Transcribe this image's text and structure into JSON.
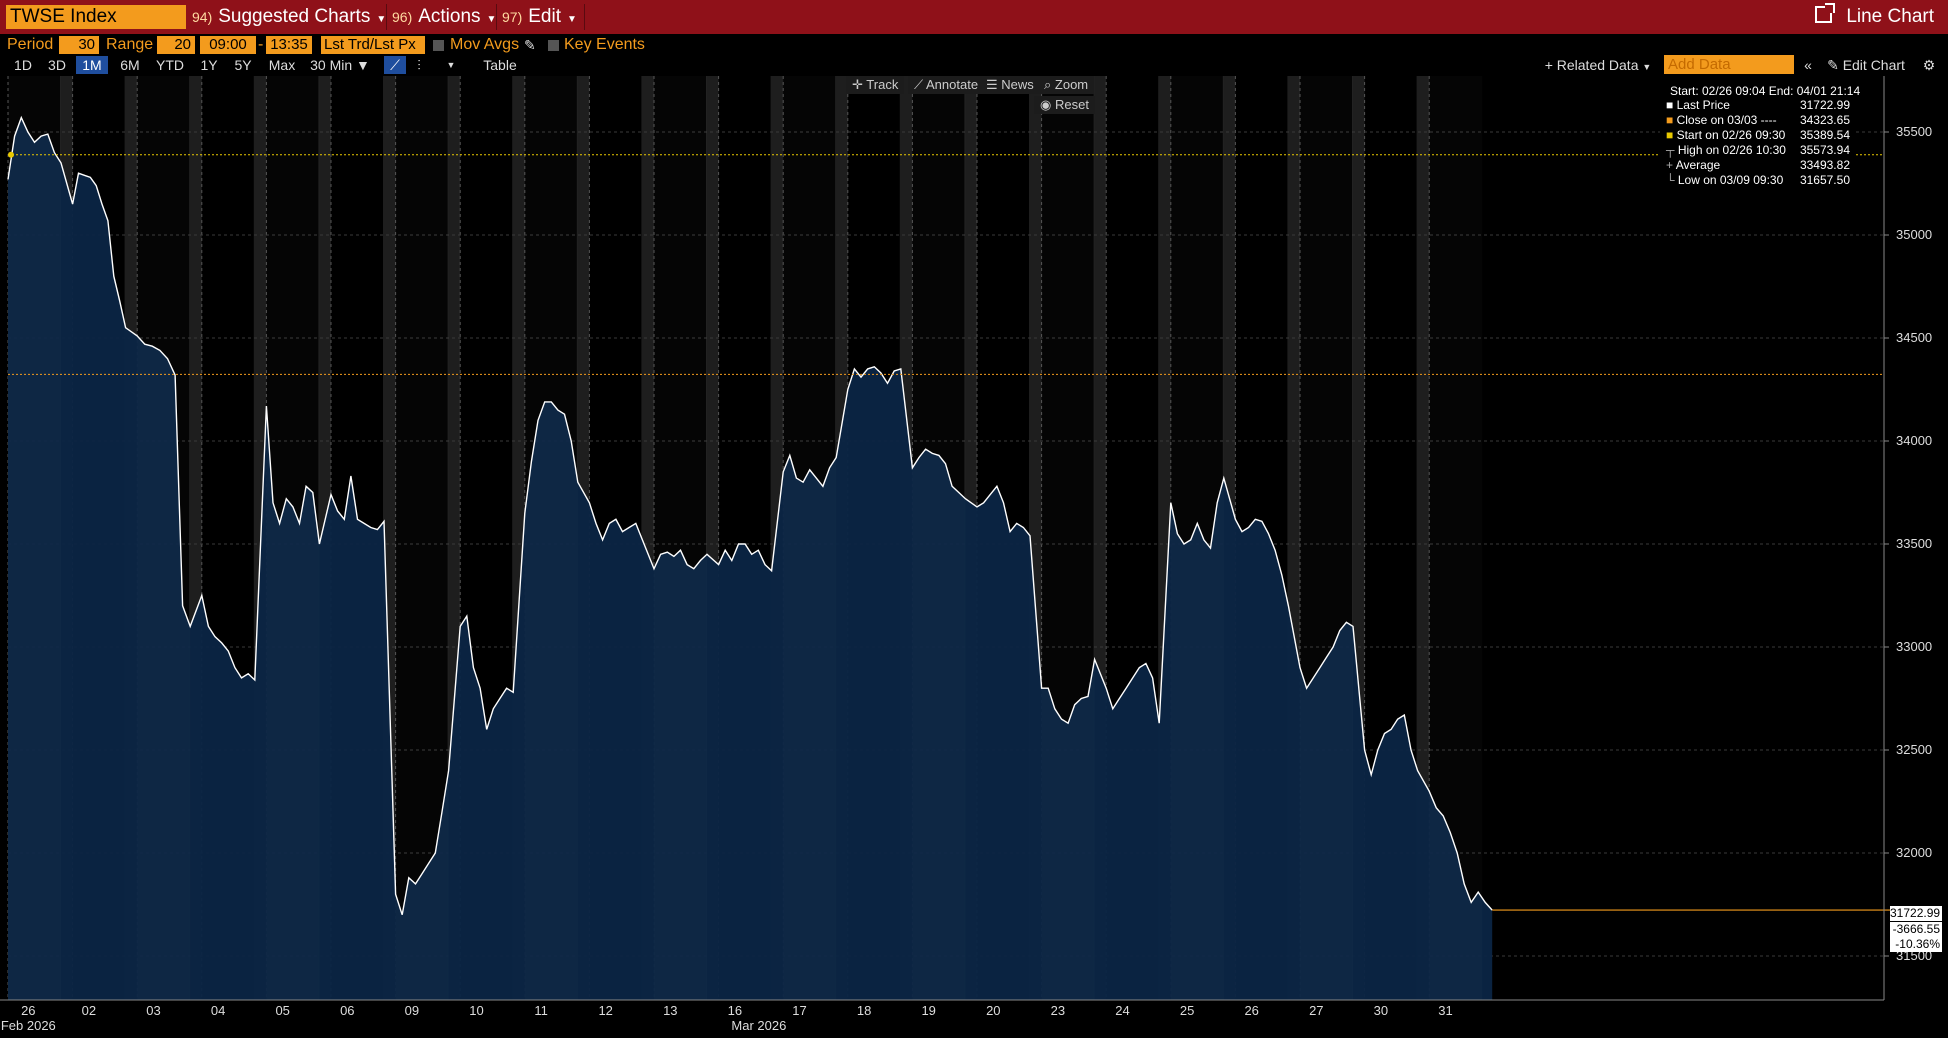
{
  "toolbar": {
    "ticker": "TWSE Index",
    "menus": [
      {
        "num": "94)",
        "label": "Suggested Charts"
      },
      {
        "num": "96)",
        "label": "Actions"
      },
      {
        "num": "97)",
        "label": "Edit"
      }
    ],
    "view_label": "Line Chart"
  },
  "settings": {
    "period_label": "Period",
    "period_value": "30",
    "range_label": "Range",
    "range_value": "20",
    "start_time": "09:00",
    "dash": "-",
    "end_time": "13:35",
    "price_field": "Lst Trd/Lst Px",
    "mov_avgs": "Mov Avgs",
    "key_events": "Key Events"
  },
  "range_tabs": [
    "1D",
    "3D",
    "1M",
    "6M",
    "YTD",
    "1Y",
    "5Y",
    "Max"
  ],
  "active_tab": "1M",
  "interval": "30 Min",
  "table_label": "Table",
  "related_data": "Related Data",
  "add_data_placeholder": "Add Data",
  "edit_chart": "Edit Chart",
  "chart_tools": {
    "track": "Track",
    "annotate": "Annotate",
    "news": "News",
    "zoom": "Zoom",
    "reset": "Reset"
  },
  "legend": {
    "range": "Start: 02/26 09:04 End: 04/01 21:14",
    "rows": [
      {
        "label": "Last Price",
        "value": "31722.99",
        "color": "#ffffff"
      },
      {
        "label": "Close on 03/03 ----",
        "value": "34323.65",
        "color": "#f39b1d"
      },
      {
        "label": "Start on 02/26 09:30",
        "value": "35389.54",
        "color": "#e8c800"
      },
      {
        "label": "High on 02/26 10:30",
        "value": "35573.94",
        "color": "#aaaaaa"
      },
      {
        "label": "Average",
        "value": "33493.82",
        "color": "#aaaaaa"
      },
      {
        "label": "Low on 03/09 09:30",
        "value": "31657.50",
        "color": "#aaaaaa"
      }
    ]
  },
  "right_labels": {
    "last": "31722.99",
    "change": "-3666.55",
    "pct": "-10.36%"
  },
  "colors": {
    "accent": "#f39b1d",
    "topbar": "#8f1119",
    "area": "#0b2545",
    "line": "#ffffff"
  },
  "chart_data": {
    "type": "area",
    "title": "",
    "xlabel": "",
    "ylabel": "",
    "y_ticks": [
      31500,
      32000,
      32500,
      33000,
      33500,
      34000,
      34500,
      35000,
      35500
    ],
    "ylim": [
      31400,
      35800
    ],
    "x_ticks": [
      "26",
      "02",
      "03",
      "04",
      "05",
      "06",
      "09",
      "10",
      "11",
      "12",
      "13",
      "16",
      "17",
      "18",
      "19",
      "20",
      "23",
      "24",
      "25",
      "26",
      "27",
      "30",
      "31"
    ],
    "month_labels": [
      {
        "day_index": 0,
        "text": "Feb 2026"
      },
      {
        "day_index": 11,
        "text": "Mar 2026"
      }
    ],
    "reference_lines": [
      {
        "name": "Start on 02/26 09:30",
        "value": 35389.54,
        "color": "#e8c800"
      },
      {
        "name": "Close on 03/03",
        "value": 34323.65,
        "color": "#f39b1d"
      },
      {
        "name": "Last Price",
        "value": 31722.99,
        "color": "#f39b1d"
      }
    ],
    "series": [
      {
        "name": "Last Price",
        "days": [
          [
            35270,
            35480,
            35570,
            35500,
            35450,
            35480,
            35490,
            35400,
            35350
          ],
          [
            35150,
            35300,
            35290,
            35280,
            35240,
            35150,
            35070,
            34800,
            34680,
            34550
          ],
          [
            34510,
            34470,
            34460,
            34440,
            34400,
            34320,
            33200,
            33100
          ],
          [
            33250,
            33100,
            33050,
            33020,
            32980,
            32900,
            32850,
            32870,
            32840
          ],
          [
            34170,
            33700,
            33600,
            33720,
            33680,
            33600,
            33780,
            33750,
            33500
          ],
          [
            33740,
            33660,
            33620,
            33830,
            33620,
            33600,
            33580,
            33570,
            33610
          ],
          [
            31800,
            31700,
            31880,
            31850,
            31900,
            31950,
            32000,
            32200,
            32400
          ],
          [
            33100,
            33150,
            32900,
            32800,
            32600,
            32700,
            32750,
            32800,
            32780
          ],
          [
            33650,
            33900,
            34100,
            34190,
            34190,
            34150,
            34130,
            34000,
            33800
          ],
          [
            33700,
            33600,
            33520,
            33600,
            33620,
            33560,
            33580,
            33600,
            33520
          ],
          [
            33380,
            33450,
            33460,
            33440,
            33470,
            33400,
            33380,
            33420,
            33450
          ],
          [
            33400,
            33470,
            33420,
            33500,
            33500,
            33450,
            33470,
            33400,
            33370
          ],
          [
            33850,
            33930,
            33820,
            33800,
            33860,
            33820,
            33780,
            33870,
            33920
          ],
          [
            34250,
            34350,
            34310,
            34350,
            34360,
            34330,
            34280,
            34340,
            34350
          ],
          [
            33870,
            33920,
            33960,
            33940,
            33930,
            33890,
            33780,
            33750,
            33720
          ],
          [
            33680,
            33700,
            33740,
            33780,
            33700,
            33560,
            33600,
            33580,
            33540
          ],
          [
            32800,
            32800,
            32700,
            32650,
            32630,
            32720,
            32750,
            32760,
            32940
          ],
          [
            32800,
            32700,
            32750,
            32800,
            32850,
            32900,
            32920,
            32850,
            32630
          ],
          [
            33700,
            33550,
            33500,
            33520,
            33600,
            33520,
            33480,
            33700,
            33820
          ],
          [
            33620,
            33560,
            33580,
            33620,
            33610,
            33550,
            33470,
            33350,
            33200
          ],
          [
            32900,
            32800,
            32850,
            32900,
            32950,
            33000,
            33080,
            33120,
            33100
          ],
          [
            32500,
            32380,
            32500,
            32580,
            32600,
            32650,
            32670,
            32500,
            32400
          ],
          [
            32300,
            32220,
            32180,
            32100,
            32000,
            31850,
            31760,
            31810,
            31760,
            31723
          ]
        ]
      }
    ]
  }
}
